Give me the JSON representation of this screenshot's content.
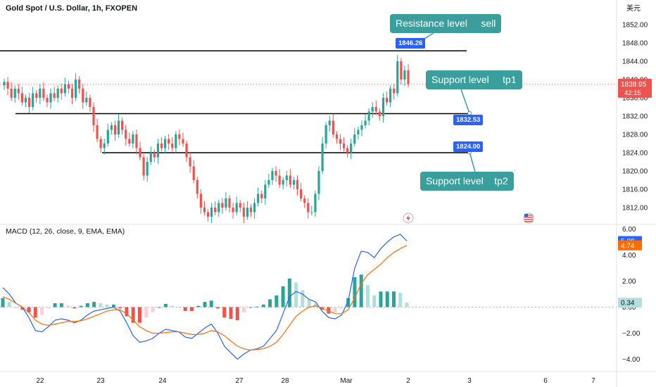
{
  "header": {
    "title": "Gold Spot / U.S. Dollar, 1h, FXOPEN",
    "currency": "美元"
  },
  "macd": {
    "title": "MACD (12, 26, close, 9, EMA, EMA)",
    "macd_value": "5.08",
    "signal_value": "4.74",
    "hist_value": "0.34"
  },
  "price_axis": {
    "labels": [
      "1852.00",
      "1848.00",
      "1844.00",
      "1840.00",
      "1836.00",
      "1832.00",
      "1828.00",
      "1824.00",
      "1820.00",
      "1816.00",
      "1812.00"
    ],
    "current_price": "1838.95",
    "countdown": "42:15"
  },
  "macd_axis": {
    "labels": [
      "6.00",
      "4.00",
      "2.00",
      "0.00",
      "−2.00",
      "−4.00"
    ]
  },
  "time_axis": {
    "labels": [
      "22",
      "23",
      "24",
      "27",
      "28",
      "Mar",
      "2",
      "3",
      "6",
      "7"
    ]
  },
  "annotations": {
    "resistance_callout": "Resistance level     sell",
    "tp1_callout": "Support level     tp1",
    "tp2_callout": "Support level    tp2",
    "resistance_price": "1846.26",
    "tp1_price": "1832.53",
    "tp2_price": "1824.00"
  },
  "colors": {
    "up": "#26a69a",
    "down": "#ef5350",
    "macd_line": "#2962ff",
    "signal_line": "#ff6d00",
    "callout": "#3a9f9c",
    "price_tag": "#2962ff"
  },
  "chart_data": [
    {
      "type": "candlestick",
      "title": "Gold Spot / U.S. Dollar, 1h, FXOPEN",
      "x": [
        "22",
        "23",
        "24",
        "27",
        "28",
        "Mar",
        "2"
      ],
      "ylim": [
        1809,
        1855
      ],
      "current_price": 1838.95,
      "horizontal_levels": [
        1846.26,
        1832.53,
        1824.0
      ],
      "close_path": [
        1839.5,
        1838,
        1836,
        1838,
        1837,
        1835,
        1836,
        1834,
        1837,
        1836,
        1838,
        1836,
        1835,
        1837,
        1836,
        1838,
        1837,
        1839,
        1838,
        1836,
        1840,
        1838,
        1835,
        1836,
        1834,
        1830,
        1827,
        1825,
        1826,
        1829,
        1830,
        1828,
        1831,
        1829,
        1827,
        1826,
        1828,
        1825,
        1823,
        1819,
        1822,
        1824,
        1823,
        1826,
        1825,
        1827,
        1826,
        1825,
        1828,
        1827,
        1826,
        1823,
        1821,
        1818,
        1815,
        1812,
        1811,
        1810,
        1812,
        1811,
        1813,
        1812,
        1814,
        1812,
        1811,
        1813,
        1812,
        1810,
        1812,
        1811,
        1813,
        1815,
        1814,
        1817,
        1818,
        1820,
        1819,
        1817,
        1818,
        1819,
        1817,
        1818,
        1816,
        1814,
        1813,
        1811,
        1811,
        1815,
        1820,
        1826,
        1830,
        1831,
        1828,
        1827,
        1826,
        1825,
        1824,
        1826,
        1828,
        1829,
        1830,
        1831,
        1833,
        1834,
        1833,
        1832,
        1836,
        1835,
        1838,
        1837,
        1844,
        1840,
        1842,
        1838.95
      ]
    },
    {
      "type": "line",
      "title": "MACD (12, 26, close, 9, EMA, EMA)",
      "ylim": [
        -4.5,
        6.5
      ],
      "series": [
        {
          "values": [
            1.5,
            1.0,
            0.3,
            0,
            -0.8,
            -1.8,
            -1.9,
            -1.5,
            -1.0,
            -0.9,
            -1.0,
            -1.2,
            -1.0,
            -0.6,
            -0.3,
            -0.2,
            -0.1,
            0.0,
            -0.3,
            -1.2,
            -2.2,
            -2.7,
            -2.6,
            -2.4,
            -2.0,
            -1.7,
            -1.8,
            -1.9,
            -2.3,
            -2.4,
            -2.0,
            -1.6,
            -1.3,
            -2.0,
            -3.0,
            -3.5,
            -4.0,
            -3.6,
            -3.3,
            -3.2,
            -3.0,
            -2.4,
            -1.8,
            -0.5,
            0.8,
            1.2,
            1.0,
            0.6,
            0.4,
            -0.3,
            -0.8,
            -0.9,
            -0.6,
            0.5,
            3.0,
            4.3,
            4.2,
            3.8,
            4.5,
            5.0,
            5.4,
            5.6,
            5.08
          ]
        },
        {
          "values": [
            0.8,
            0.6,
            0.3,
            0,
            -0.4,
            -1.0,
            -1.3,
            -1.4,
            -1.3,
            -1.2,
            -1.1,
            -1.1,
            -1.05,
            -0.9,
            -0.7,
            -0.5,
            -0.3,
            -0.2,
            -0.2,
            -0.5,
            -1.0,
            -1.5,
            -1.8,
            -2.0,
            -2.0,
            -1.95,
            -1.9,
            -1.9,
            -2.0,
            -2.1,
            -2.1,
            -2.0,
            -1.8,
            -1.9,
            -2.2,
            -2.6,
            -3.0,
            -3.2,
            -3.3,
            -3.25,
            -3.2,
            -3.0,
            -2.7,
            -2.1,
            -1.4,
            -0.7,
            -0.3,
            0.0,
            0.1,
            -0.1,
            -0.3,
            -0.5,
            -0.5,
            -0.2,
            0.7,
            1.8,
            2.5,
            2.9,
            3.3,
            3.8,
            4.2,
            4.5,
            4.74
          ]
        }
      ],
      "histogram": [
        0.7,
        0.4,
        0,
        -0.2,
        -0.4,
        -0.8,
        -0.6,
        -0.1,
        0.3,
        0.3,
        0.1,
        -0.1,
        0.1,
        0.3,
        0.4,
        0.3,
        0.2,
        0.2,
        -0.1,
        -0.7,
        -1.2,
        -1.2,
        -0.8,
        -0.4,
        0,
        0.25,
        0.1,
        0,
        -0.3,
        -0.3,
        0.1,
        0.4,
        0.5,
        -0.1,
        -0.8,
        -0.9,
        -1.0,
        -0.4,
        0,
        0.05,
        0.2,
        0.6,
        0.9,
        1.6,
        2.2,
        1.9,
        1.3,
        0.6,
        0.3,
        -0.2,
        -0.5,
        -0.4,
        -0.1,
        0.7,
        2.3,
        2.5,
        1.7,
        0.9,
        1.2,
        1.2,
        1.2,
        1.1,
        0.34
      ]
    }
  ]
}
